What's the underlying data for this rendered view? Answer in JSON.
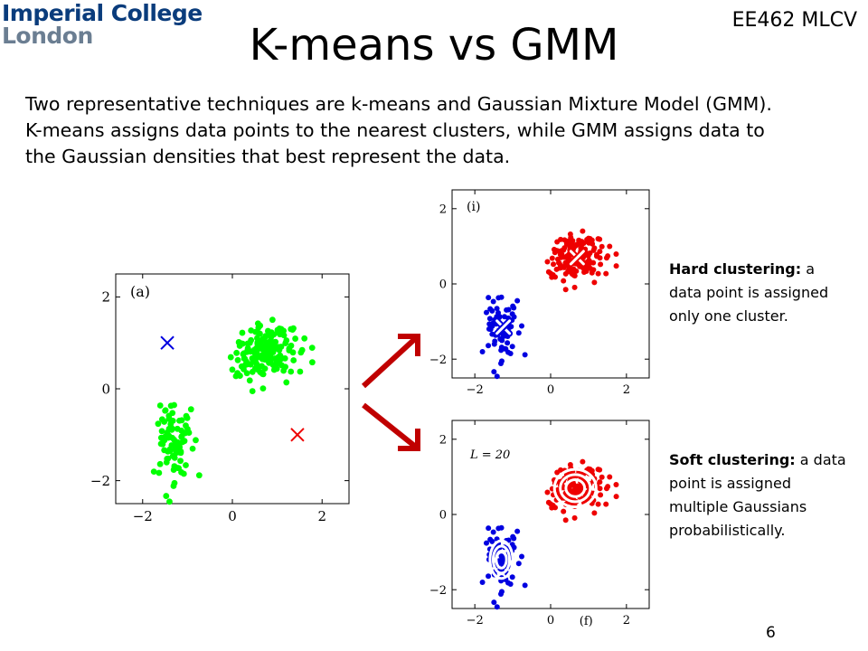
{
  "header": {
    "logo_line1": "Imperial College",
    "logo_line2": "London",
    "course": "EE462 MLCV",
    "title": "K-means vs GMM"
  },
  "intro": [
    "Two representative techniques are k-means and Gaussian Mixture Model (GMM).",
    "K-means assigns data points to the nearest clusters, while GMM assigns data to",
    "the Gaussian densities that best represent the data."
  ],
  "hard": {
    "bold": "Hard clustering:",
    "text": " a data point is assigned only one cluster."
  },
  "soft": {
    "bold": "Soft clustering:",
    "text": " a data point is assigned multiple Gaussians probabilistically."
  },
  "page_number": "6",
  "colors": {
    "green": "#00ff00",
    "blue": "#0000e0",
    "red": "#ee0000",
    "arrow": "#c00000",
    "logo_blue": "#0a3c7c"
  },
  "chart_data": [
    {
      "type": "scatter",
      "panel_label": "(a)",
      "xlim": [
        -2.6,
        2.6
      ],
      "ylim": [
        -2.5,
        2.5
      ],
      "xticks": [
        -2,
        0,
        2
      ],
      "yticks": [
        -2,
        0,
        2
      ],
      "clusters": [
        {
          "color": "green",
          "cx": -1.3,
          "cy": -1.2,
          "sx": 0.18,
          "sy": 0.45,
          "n": 90
        },
        {
          "color": "green",
          "cx": 0.7,
          "cy": 0.8,
          "sx": 0.35,
          "sy": 0.3,
          "n": 170
        }
      ],
      "markers": [
        {
          "x": -1.45,
          "y": 1.0,
          "color": "blue",
          "shape": "x"
        },
        {
          "x": 1.45,
          "y": -1.0,
          "color": "red",
          "shape": "x"
        }
      ]
    },
    {
      "type": "scatter",
      "panel_label": "(i)",
      "xlim": [
        -2.6,
        2.6
      ],
      "ylim": [
        -2.5,
        2.5
      ],
      "xticks": [
        -2,
        0,
        2
      ],
      "yticks": [
        -2,
        0,
        2
      ],
      "clusters": [
        {
          "color": "blue",
          "cx": -1.3,
          "cy": -1.2,
          "sx": 0.2,
          "sy": 0.45,
          "n": 80
        },
        {
          "color": "red",
          "cx": 0.65,
          "cy": 0.7,
          "sx": 0.35,
          "sy": 0.3,
          "n": 170
        }
      ],
      "markers": [
        {
          "x": -1.25,
          "y": -1.15,
          "color": "blue",
          "shape": "x-outline"
        },
        {
          "x": 0.7,
          "y": 0.7,
          "color": "red",
          "shape": "x-outline"
        }
      ]
    },
    {
      "type": "scatter",
      "panel_label": "(f)",
      "annotation": "L = 20",
      "xlim": [
        -2.6,
        2.6
      ],
      "ylim": [
        -2.5,
        2.5
      ],
      "xticks": [
        -2,
        0,
        2
      ],
      "yticks": [
        -2,
        0,
        2
      ],
      "clusters": [
        {
          "color": "blue",
          "cx": -1.3,
          "cy": -1.2,
          "sx": 0.2,
          "sy": 0.45,
          "n": 80
        },
        {
          "color": "red",
          "cx": 0.65,
          "cy": 0.7,
          "sx": 0.35,
          "sy": 0.3,
          "n": 170
        }
      ],
      "ellipses": [
        {
          "cx": -1.3,
          "cy": -1.2,
          "rx": 0.3,
          "ry": 0.5,
          "color": "blue"
        },
        {
          "cx": 0.65,
          "cy": 0.7,
          "rx": 0.55,
          "ry": 0.5,
          "color": "red"
        }
      ]
    }
  ]
}
